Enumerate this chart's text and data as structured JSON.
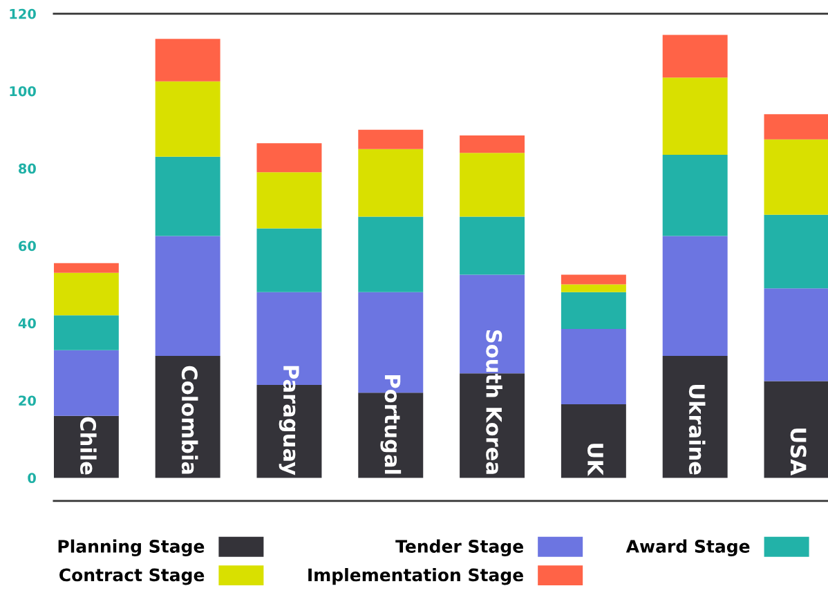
{
  "chart_data": {
    "type": "bar",
    "stacked": true,
    "categories": [
      "Chile",
      "Colombia",
      "Paraguay",
      "Portugal",
      "South Korea",
      "UK",
      "Ukraine",
      "USA"
    ],
    "series": [
      {
        "name": "Planning Stage",
        "color": "#343339",
        "values": [
          16,
          31.5,
          24,
          22,
          27,
          19,
          31.5,
          25
        ]
      },
      {
        "name": "Tender Stage",
        "color": "#6c75e1",
        "values": [
          17,
          31,
          24,
          26,
          25.5,
          19.5,
          31,
          24
        ]
      },
      {
        "name": "Award Stage",
        "color": "#22b2a8",
        "values": [
          9,
          20.5,
          16.5,
          19.5,
          15,
          9.5,
          21,
          19
        ]
      },
      {
        "name": "Contract Stage",
        "color": "#d9e000",
        "values": [
          11,
          19.5,
          14.5,
          17.5,
          16.5,
          2,
          20,
          19.5
        ]
      },
      {
        "name": "Implementation Stage",
        "color": "#ff6347",
        "values": [
          2.5,
          11,
          7.5,
          5,
          4.5,
          2.5,
          11,
          6.5
        ]
      }
    ],
    "ylim": [
      -6,
      120
    ],
    "yticks": [
      0,
      20,
      40,
      60,
      80,
      100,
      120
    ],
    "grid": false,
    "legend": "bottom"
  }
}
